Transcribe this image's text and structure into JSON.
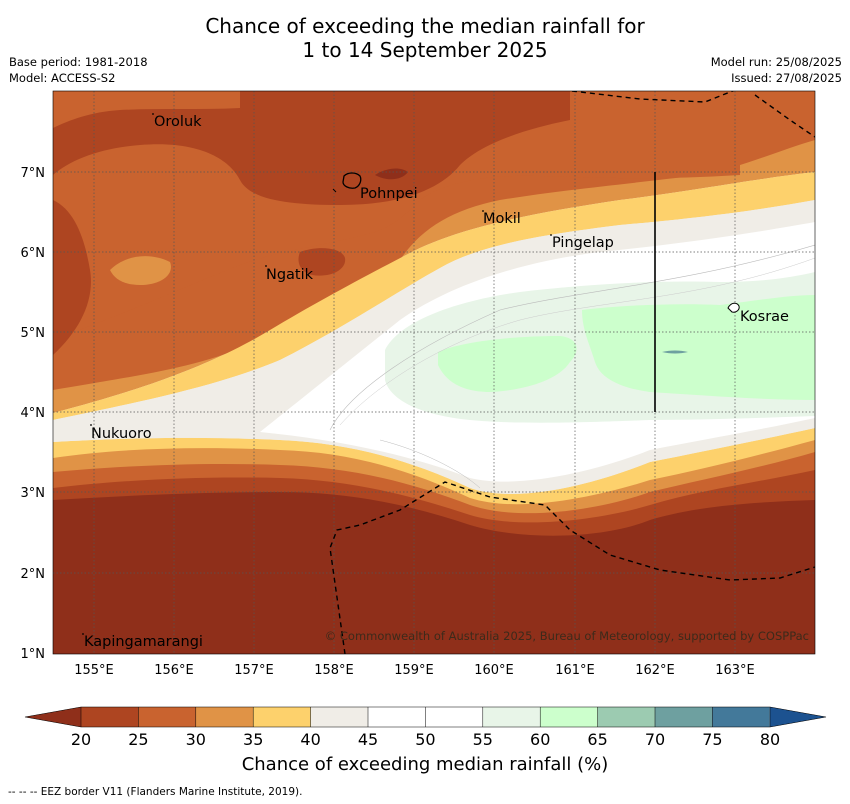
{
  "title": {
    "line1": "Chance of exceeding the median rainfall for",
    "line2": "1 to 14 September 2025"
  },
  "meta": {
    "base_period": "Base period: 1981-2018",
    "model": "Model: ACCESS-S2",
    "model_run": "Model run: 25/08/2025",
    "issued": "Issued: 27/08/2025"
  },
  "map": {
    "lat_labels": [
      "7°N",
      "6°N",
      "5°N",
      "4°N",
      "3°N",
      "2°N",
      "1°N"
    ],
    "lon_labels": [
      "155°E",
      "156°E",
      "157°E",
      "158°E",
      "159°E",
      "160°E",
      "161°E",
      "162°E",
      "163°E"
    ],
    "places": {
      "oroluk": "Oroluk",
      "pohnpei": "Pohnpei",
      "mokil": "Mokil",
      "pingelap": "Pingelap",
      "ngatik": "Ngatik",
      "kosrae": "Kosrae",
      "nukuoro": "Nukuoro",
      "kapingamarangi": "Kapingamarangi"
    },
    "copyright": "© Commonwealth of Australia 2025, Bureau of Meteorology, supported by COSPPac"
  },
  "colorbar": {
    "ticks": [
      "20",
      "25",
      "30",
      "35",
      "40",
      "45",
      "50",
      "55",
      "60",
      "65",
      "70",
      "75",
      "80"
    ],
    "colors": {
      "below20": "#8f2f1a",
      "c20": "#ae4521",
      "c25": "#c9632f",
      "c30": "#e09346",
      "c35": "#fdd16c",
      "c40": "#f0ede7",
      "c45": "#ffffff",
      "c50": "#ffffff",
      "c55": "#e8f5e8",
      "c60": "#ccffcc",
      "c65": "#9ccbb1",
      "c70": "#6ea0a0",
      "c75": "#43799a",
      "above80": "#1c5290"
    },
    "label": "Chance of exceeding median rainfall (%)"
  },
  "footnote": "--  --  -- EEZ border V11 (Flanders Marine Institute, 2019)."
}
